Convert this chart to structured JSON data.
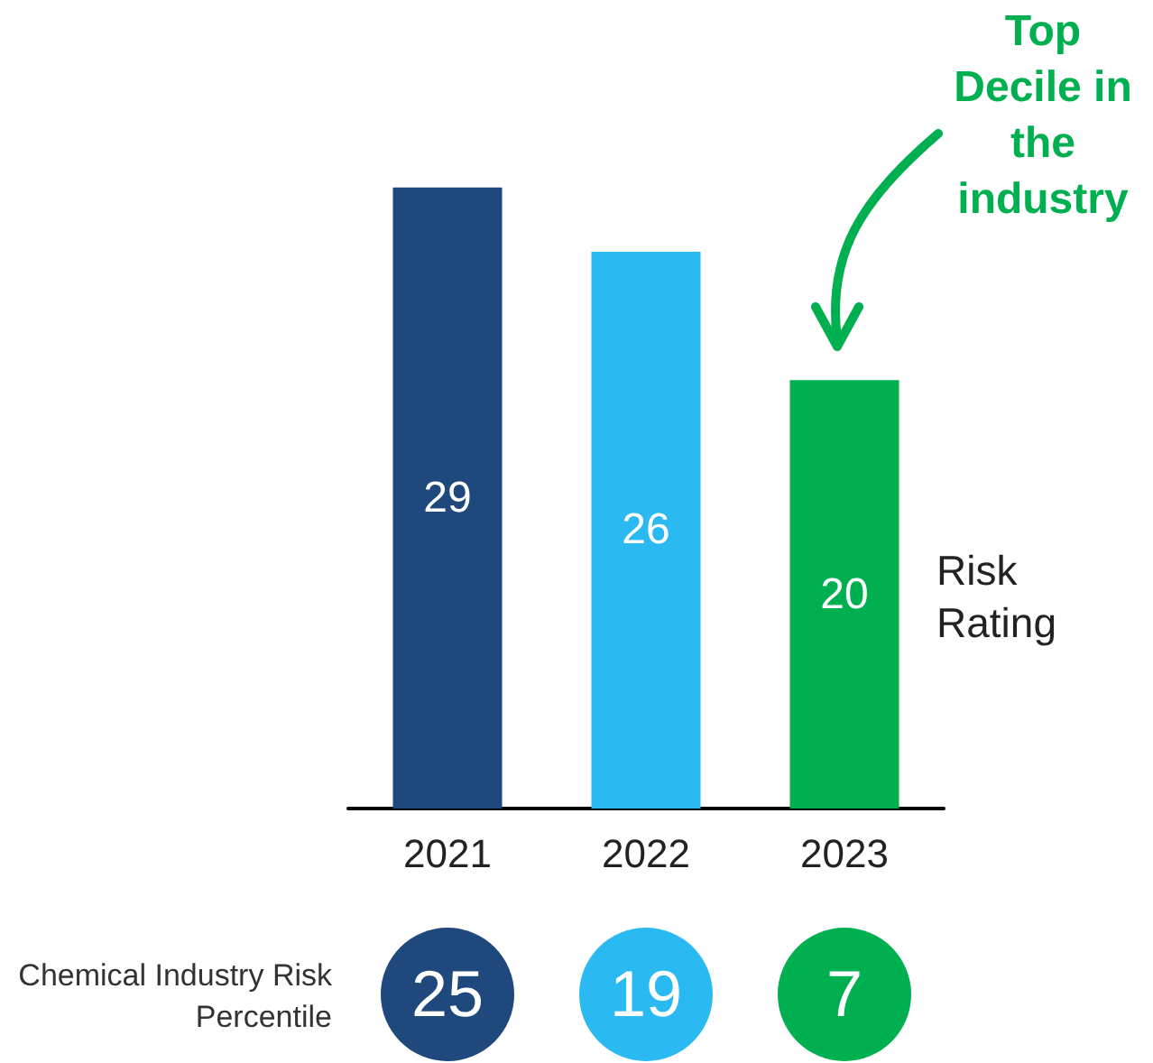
{
  "chart_data": {
    "type": "bar",
    "categories": [
      "2021",
      "2022",
      "2023"
    ],
    "values": [
      29,
      26,
      20
    ],
    "colors": [
      "#1f497d",
      "#2bb9f2",
      "#00b050"
    ],
    "data_labels": true,
    "ylabel": "Risk Rating",
    "annotations": [
      "Top Decile in the industry",
      "Chemical Industry Risk Percentile",
      "25",
      "19",
      "7"
    ]
  }
}
